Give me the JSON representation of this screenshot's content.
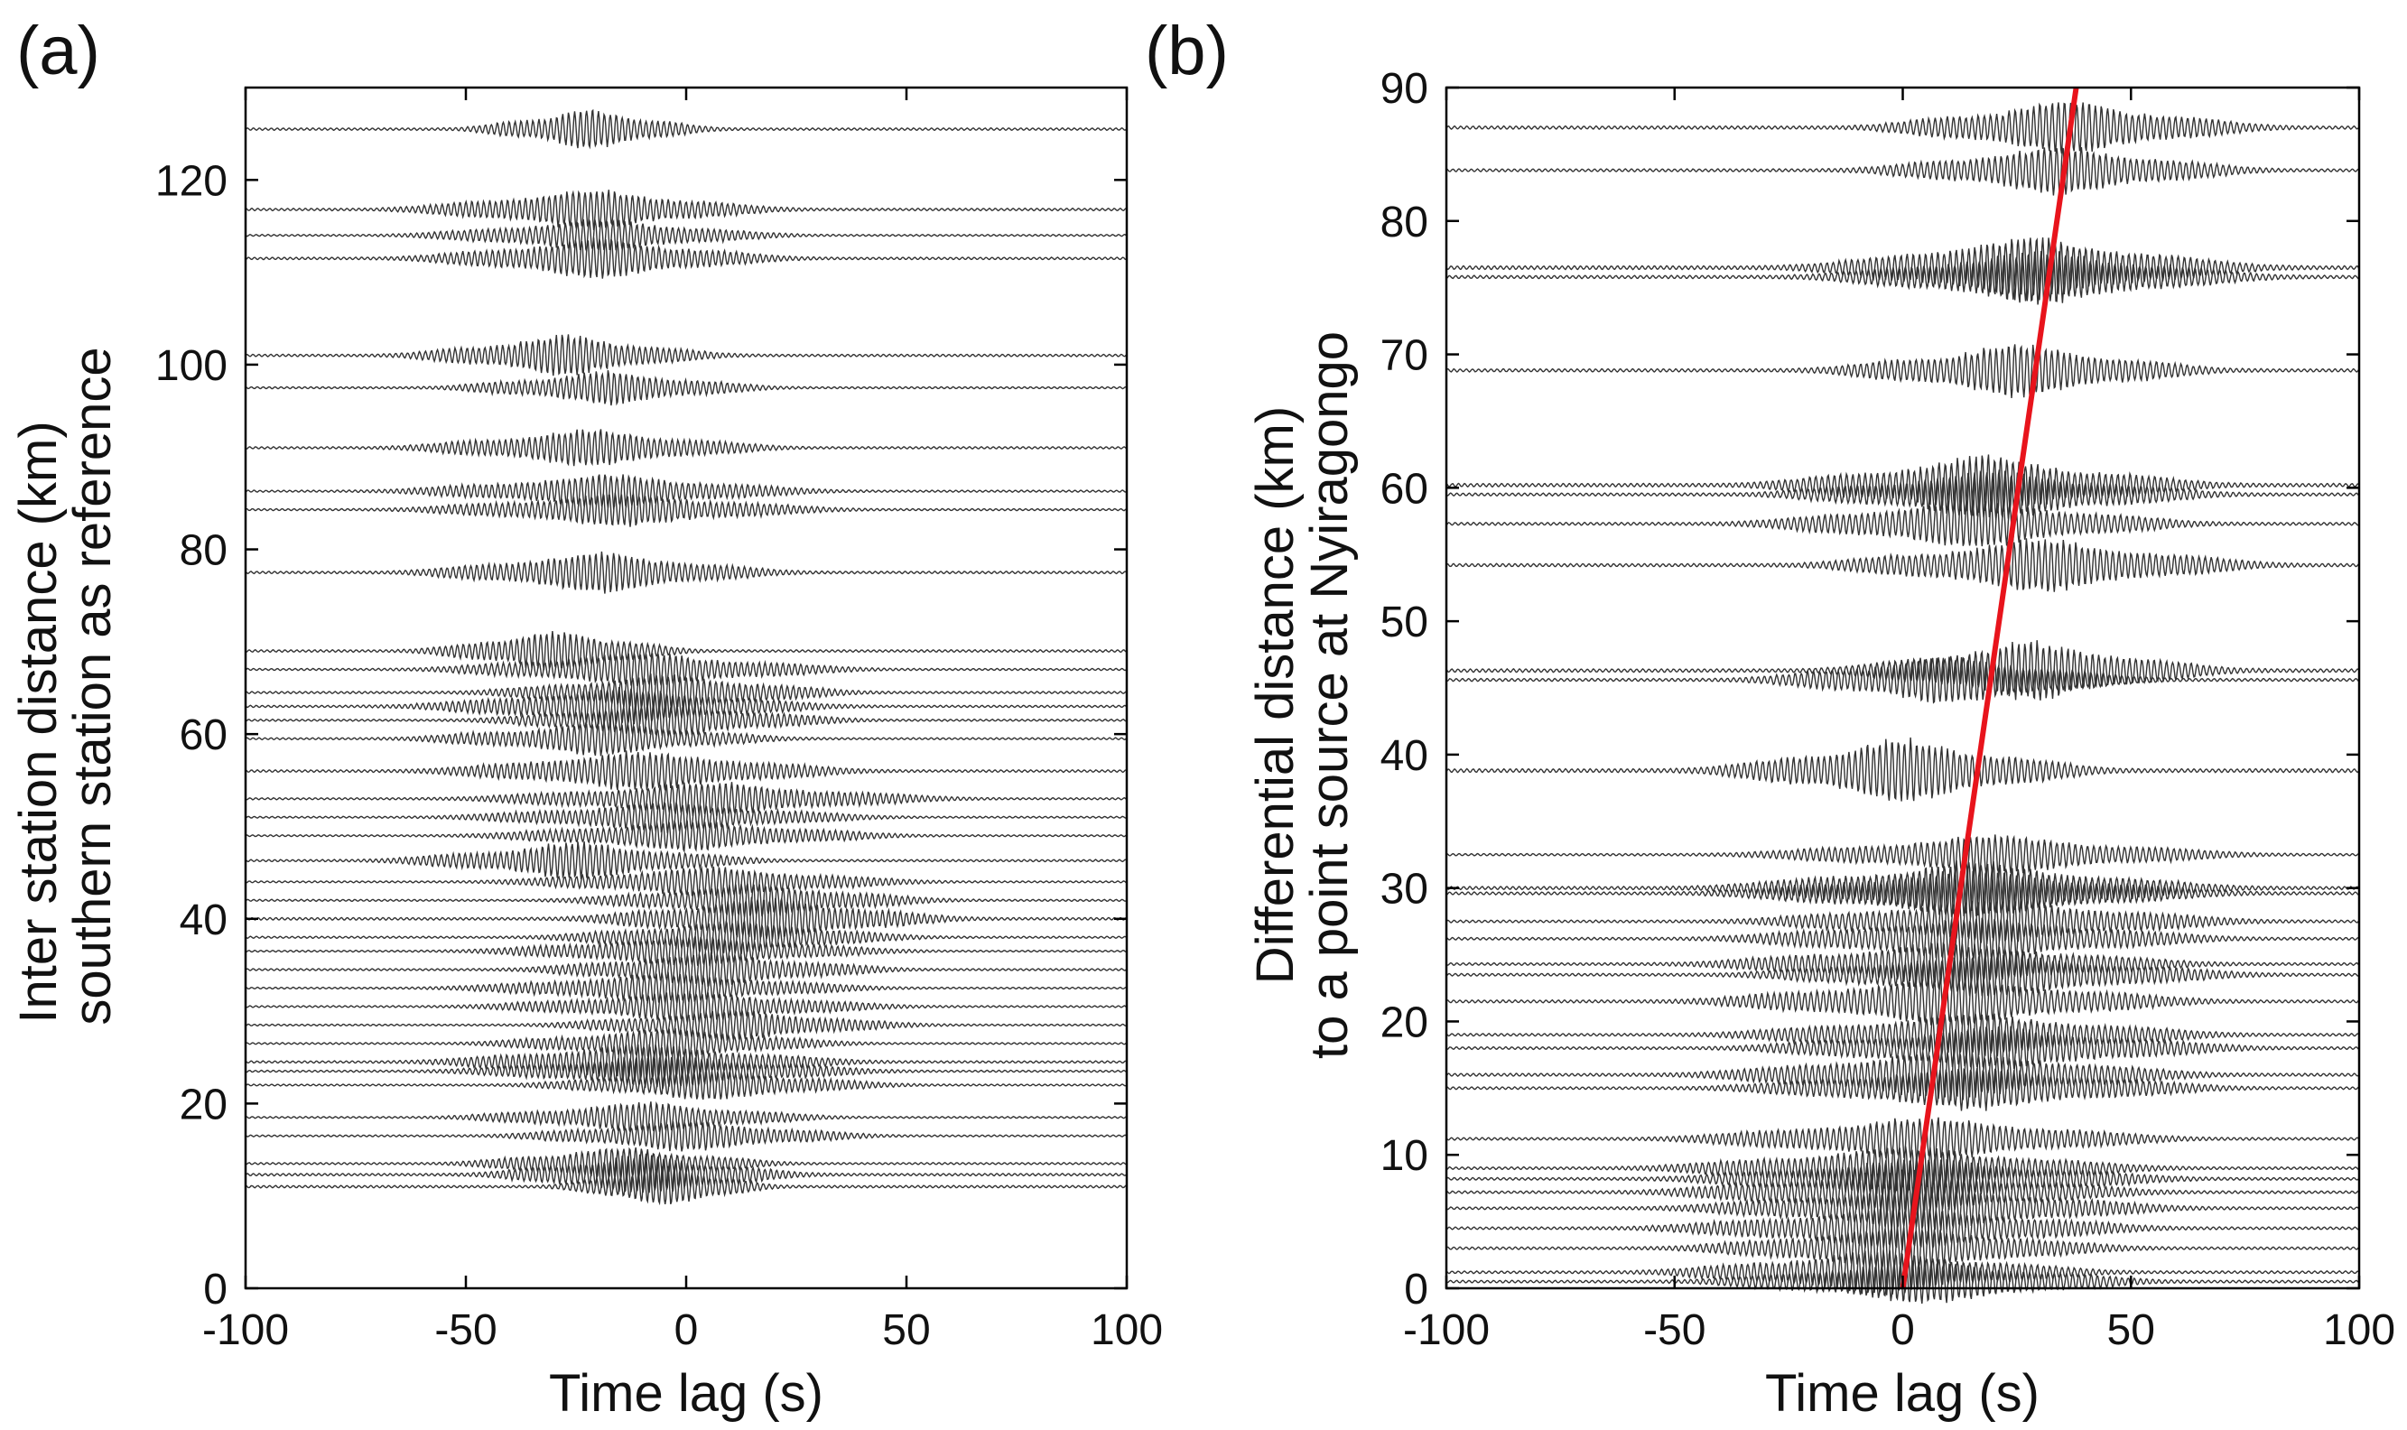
{
  "chart_data": [
    {
      "type": "line",
      "panel_label": "(a)",
      "xlabel": "Time lag (s)",
      "ylabel": [
        "Inter station distance (km)",
        "southern station as reference"
      ],
      "xlim": [
        -100,
        100
      ],
      "ylim": [
        0,
        130
      ],
      "xticks": [
        -100,
        -50,
        0,
        50,
        100
      ],
      "yticks": [
        0,
        20,
        40,
        60,
        80,
        100,
        120
      ],
      "grid": false,
      "trace_color": "#333333",
      "traces": [
        {
          "distance": 125.5,
          "center": -22,
          "width": 9,
          "amp": 2.4
        },
        {
          "distance": 116.8,
          "center": -22,
          "width": 14,
          "amp": 2.4
        },
        {
          "distance": 114.0,
          "center": -20,
          "width": 14,
          "amp": 1.9
        },
        {
          "distance": 111.5,
          "center": -20,
          "width": 14,
          "amp": 2.4
        },
        {
          "distance": 101.0,
          "center": -28,
          "width": 12,
          "amp": 2.4
        },
        {
          "distance": 97.5,
          "center": -18,
          "width": 12,
          "amp": 2.0
        },
        {
          "distance": 91.0,
          "center": -22,
          "width": 14,
          "amp": 2.2
        },
        {
          "distance": 86.3,
          "center": -18,
          "width": 16,
          "amp": 2.0
        },
        {
          "distance": 84.3,
          "center": -15,
          "width": 16,
          "amp": 2.0
        },
        {
          "distance": 77.5,
          "center": -20,
          "width": 14,
          "amp": 2.4
        },
        {
          "distance": 69.0,
          "center": -30,
          "width": 10,
          "amp": 2.4
        },
        {
          "distance": 67.0,
          "center": -10,
          "width": 16,
          "amp": 2.0
        },
        {
          "distance": 64.5,
          "center": -5,
          "width": 14,
          "amp": 2.2
        },
        {
          "distance": 63.0,
          "center": -15,
          "width": 16,
          "amp": 2.2
        },
        {
          "distance": 61.5,
          "center": -5,
          "width": 14,
          "amp": 2.0
        },
        {
          "distance": 59.5,
          "center": -20,
          "width": 14,
          "amp": 2.0
        },
        {
          "distance": 56.0,
          "center": -10,
          "width": 16,
          "amp": 2.4
        },
        {
          "distance": 53.0,
          "center": 5,
          "width": 18,
          "amp": 2.0
        },
        {
          "distance": 51.0,
          "center": -5,
          "width": 16,
          "amp": 1.8
        },
        {
          "distance": 49.0,
          "center": 0,
          "width": 16,
          "amp": 1.8
        },
        {
          "distance": 46.3,
          "center": -25,
          "width": 14,
          "amp": 2.2
        },
        {
          "distance": 44.0,
          "center": 5,
          "width": 16,
          "amp": 1.8
        },
        {
          "distance": 42.0,
          "center": 15,
          "width": 14,
          "amp": 2.0
        },
        {
          "distance": 40.0,
          "center": 18,
          "width": 14,
          "amp": 2.6
        },
        {
          "distance": 38.0,
          "center": 10,
          "width": 14,
          "amp": 2.0
        },
        {
          "distance": 36.5,
          "center": 0,
          "width": 16,
          "amp": 1.8
        },
        {
          "distance": 34.5,
          "center": 5,
          "width": 14,
          "amp": 2.0
        },
        {
          "distance": 32.5,
          "center": -5,
          "width": 16,
          "amp": 1.8
        },
        {
          "distance": 30.5,
          "center": 0,
          "width": 16,
          "amp": 1.8
        },
        {
          "distance": 28.5,
          "center": 10,
          "width": 14,
          "amp": 1.8
        },
        {
          "distance": 26.5,
          "center": -5,
          "width": 14,
          "amp": 1.8
        },
        {
          "distance": 24.5,
          "center": -10,
          "width": 16,
          "amp": 2.2
        },
        {
          "distance": 23.5,
          "center": -5,
          "width": 16,
          "amp": 2.0
        },
        {
          "distance": 22.0,
          "center": 5,
          "width": 14,
          "amp": 1.8
        },
        {
          "distance": 18.5,
          "center": -10,
          "width": 14,
          "amp": 1.8
        },
        {
          "distance": 16.5,
          "center": 0,
          "width": 14,
          "amp": 1.8
        },
        {
          "distance": 13.5,
          "center": -15,
          "width": 12,
          "amp": 2.0
        },
        {
          "distance": 12.3,
          "center": -10,
          "width": 12,
          "amp": 2.4
        },
        {
          "distance": 11.0,
          "center": -5,
          "width": 8,
          "amp": 2.4
        }
      ]
    },
    {
      "type": "line",
      "panel_label": "(b)",
      "xlabel": "Time lag (s)",
      "ylabel": [
        "Differential distance (km)",
        "to a point source at Nyiragongo"
      ],
      "xlim": [
        -100,
        100
      ],
      "ylim": [
        0,
        90
      ],
      "xticks": [
        -100,
        -50,
        0,
        50,
        100
      ],
      "yticks": [
        0,
        10,
        20,
        30,
        40,
        50,
        60,
        70,
        80,
        90
      ],
      "grid": false,
      "trace_color": "#333333",
      "fit_line": {
        "color": "#e8141c",
        "x0": 0,
        "y0": 0,
        "x1": 38,
        "y1": 90
      },
      "traces": [
        {
          "distance": 87.0,
          "center": 36,
          "width": 14,
          "amp": 2.2
        },
        {
          "distance": 83.8,
          "center": 34,
          "width": 14,
          "amp": 2.0
        },
        {
          "distance": 76.5,
          "center": 28,
          "width": 16,
          "amp": 2.6
        },
        {
          "distance": 75.8,
          "center": 30,
          "width": 16,
          "amp": 2.2
        },
        {
          "distance": 68.8,
          "center": 25,
          "width": 14,
          "amp": 2.2
        },
        {
          "distance": 60.2,
          "center": 18,
          "width": 16,
          "amp": 2.4
        },
        {
          "distance": 59.5,
          "center": 20,
          "width": 16,
          "amp": 2.0
        },
        {
          "distance": 57.3,
          "center": 15,
          "width": 16,
          "amp": 2.0
        },
        {
          "distance": 54.2,
          "center": 30,
          "width": 16,
          "amp": 2.2
        },
        {
          "distance": 46.3,
          "center": 28,
          "width": 14,
          "amp": 2.4
        },
        {
          "distance": 45.6,
          "center": 10,
          "width": 14,
          "amp": 2.0
        },
        {
          "distance": 38.8,
          "center": 0,
          "width": 14,
          "amp": 2.6
        },
        {
          "distance": 32.5,
          "center": 20,
          "width": 18,
          "amp": 1.6
        },
        {
          "distance": 30.0,
          "center": 15,
          "width": 18,
          "amp": 2.2
        },
        {
          "distance": 29.6,
          "center": 15,
          "width": 18,
          "amp": 2.0
        },
        {
          "distance": 27.5,
          "center": 20,
          "width": 18,
          "amp": 1.8
        },
        {
          "distance": 26.2,
          "center": 15,
          "width": 18,
          "amp": 1.8
        },
        {
          "distance": 24.3,
          "center": 10,
          "width": 18,
          "amp": 1.8
        },
        {
          "distance": 23.5,
          "center": 20,
          "width": 18,
          "amp": 1.8
        },
        {
          "distance": 21.5,
          "center": 10,
          "width": 18,
          "amp": 2.0
        },
        {
          "distance": 19.0,
          "center": 15,
          "width": 18,
          "amp": 1.8
        },
        {
          "distance": 18.0,
          "center": 20,
          "width": 18,
          "amp": 1.8
        },
        {
          "distance": 16.0,
          "center": 10,
          "width": 18,
          "amp": 2.0
        },
        {
          "distance": 15.0,
          "center": 15,
          "width": 18,
          "amp": 1.8
        },
        {
          "distance": 11.2,
          "center": 5,
          "width": 18,
          "amp": 1.8
        },
        {
          "distance": 9.0,
          "center": 0,
          "width": 18,
          "amp": 1.8
        },
        {
          "distance": 8.2,
          "center": 5,
          "width": 18,
          "amp": 1.8
        },
        {
          "distance": 7.2,
          "center": 0,
          "width": 18,
          "amp": 1.8
        },
        {
          "distance": 6.0,
          "center": 5,
          "width": 18,
          "amp": 1.8
        },
        {
          "distance": 4.5,
          "center": 0,
          "width": 18,
          "amp": 1.8
        },
        {
          "distance": 3.0,
          "center": 0,
          "width": 16,
          "amp": 1.8
        },
        {
          "distance": 1.2,
          "center": -5,
          "width": 16,
          "amp": 1.8
        },
        {
          "distance": 0.5,
          "center": 5,
          "width": 16,
          "amp": 1.8
        }
      ]
    }
  ]
}
